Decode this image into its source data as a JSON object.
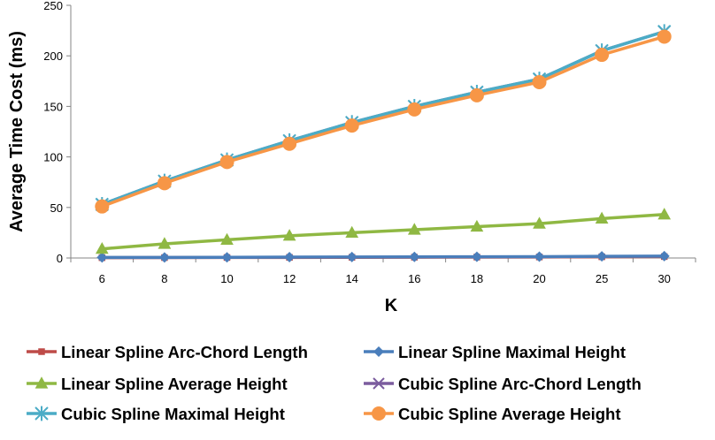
{
  "chart_data": {
    "type": "line",
    "title": "",
    "xlabel": "K",
    "ylabel": "Average Time Cost (ms)",
    "categories": [
      "6",
      "8",
      "10",
      "12",
      "14",
      "16",
      "18",
      "20",
      "25",
      "30"
    ],
    "ylim": [
      0,
      250
    ],
    "yticks": [
      0,
      50,
      100,
      150,
      200,
      250
    ],
    "grid": false,
    "legend_position": "bottom",
    "series": [
      {
        "name": "Linear Spline Arc-Chord Length",
        "color": "#BE4B48",
        "marker": "square",
        "values": [
          0.3,
          0.4,
          0.5,
          0.6,
          0.7,
          0.8,
          0.9,
          1.0,
          1.2,
          1.4
        ]
      },
      {
        "name": "Linear Spline Maximal Height",
        "color": "#4A7EBB",
        "marker": "diamond",
        "values": [
          0.5,
          0.6,
          0.7,
          0.9,
          1.0,
          1.1,
          1.2,
          1.3,
          1.6,
          1.9
        ]
      },
      {
        "name": "Linear Spline Average Height",
        "color": "#8FB843",
        "marker": "triangle",
        "values": [
          9,
          14,
          18,
          22,
          25,
          28,
          31,
          34,
          39,
          43
        ]
      },
      {
        "name": "Cubic Spline Arc-Chord Length",
        "color": "#7B5C9E",
        "marker": "x",
        "values": [
          53,
          76,
          97,
          116,
          134,
          150,
          164,
          177,
          205,
          224
        ]
      },
      {
        "name": "Cubic Spline Maximal Height",
        "color": "#4BACC6",
        "marker": "star",
        "values": [
          53,
          76,
          97,
          116,
          134,
          150,
          164,
          177,
          205,
          224
        ]
      },
      {
        "name": "Cubic Spline Average Height",
        "color": "#F79646",
        "marker": "circle",
        "values": [
          51,
          74,
          95,
          113,
          131,
          147,
          161,
          174,
          201,
          219
        ]
      }
    ]
  }
}
